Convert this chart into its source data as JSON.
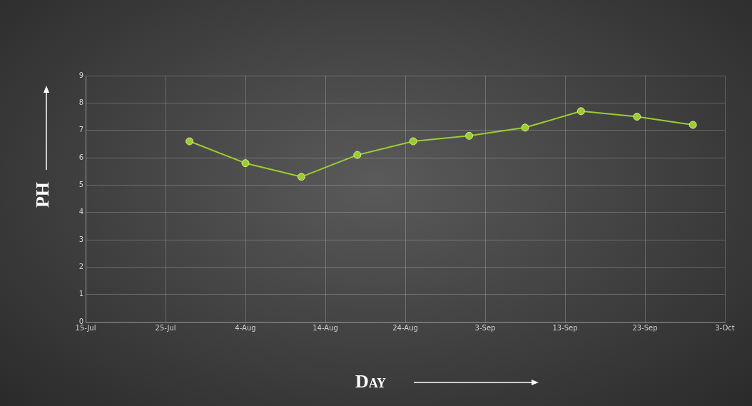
{
  "chart_data": {
    "type": "line",
    "xlabel": "Day",
    "ylabel": "PH",
    "x": [
      "--07-28",
      "--08-04",
      "--08-11",
      "--08-18",
      "--08-25",
      "--09-01",
      "--09-08",
      "--09-15",
      "--09-22",
      "--09-29"
    ],
    "series": [
      {
        "color": "#9acd32",
        "values": [
          6.6,
          5.8,
          5.3,
          6.1,
          6.6,
          6.8,
          7.1,
          7.7,
          7.5,
          7.2
        ]
      }
    ],
    "xlim": [
      "--07-15",
      "--10-03"
    ],
    "xticks": [
      {
        "value": "--07-15",
        "label": "15-Jul"
      },
      {
        "value": "--07-25",
        "label": "25-Jul"
      },
      {
        "value": "--08-04",
        "label": "4-Aug"
      },
      {
        "value": "--08-14",
        "label": "14-Aug"
      },
      {
        "value": "--08-24",
        "label": "24-Aug"
      },
      {
        "value": "--09-03",
        "label": "3-Sep"
      },
      {
        "value": "--09-13",
        "label": "13-Sep"
      },
      {
        "value": "--09-23",
        "label": "23-Sep"
      },
      {
        "value": "--10-03",
        "label": "3-Oct"
      }
    ],
    "ylim": [
      0,
      9
    ],
    "yticks": [
      0,
      1,
      2,
      3,
      4,
      5,
      6,
      7,
      8,
      9
    ],
    "grid": true,
    "legend": false,
    "marker": "circle",
    "line_style": "solid"
  }
}
